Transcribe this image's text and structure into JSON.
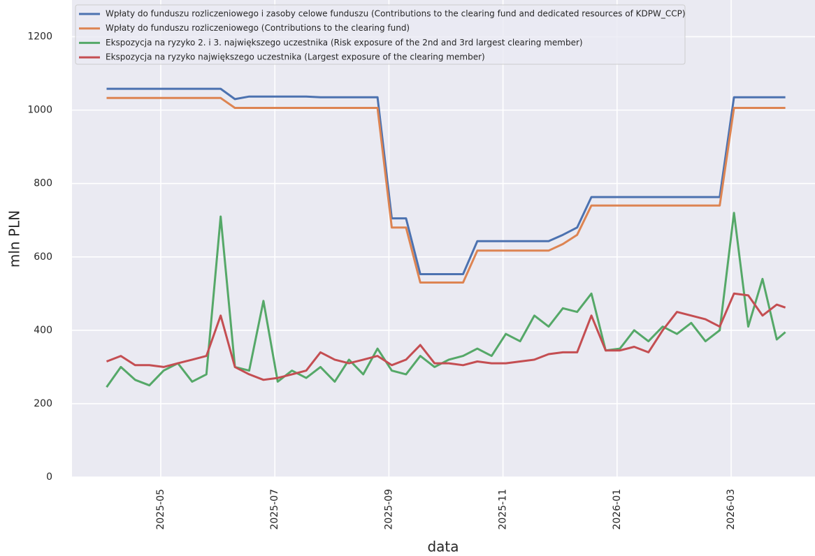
{
  "chart_data": {
    "type": "line",
    "xlabel": "data",
    "ylabel": "mln PLN",
    "xlim": [
      -0.556,
      12.47
    ],
    "ylim": [
      0,
      1300
    ],
    "xticks": [
      {
        "value": 1,
        "label": "2025-05"
      },
      {
        "value": 3,
        "label": "2025-07"
      },
      {
        "value": 5,
        "label": "2025-09"
      },
      {
        "value": 7,
        "label": "2025-11"
      },
      {
        "value": 9,
        "label": "2026-01"
      },
      {
        "value": 11,
        "label": "2026-03"
      }
    ],
    "yticks": [
      0,
      200,
      400,
      600,
      800,
      1000,
      1200
    ],
    "grid": true,
    "legend": "upper left",
    "x": [
      0.05,
      0.3,
      0.55,
      0.8,
      1.05,
      1.3,
      1.55,
      1.8,
      2.05,
      2.3,
      2.55,
      2.8,
      3.05,
      3.3,
      3.55,
      3.8,
      4.05,
      4.3,
      4.55,
      4.8,
      5.05,
      5.3,
      5.55,
      5.8,
      6.05,
      6.3,
      6.55,
      6.8,
      7.05,
      7.3,
      7.55,
      7.8,
      8.05,
      8.3,
      8.55,
      8.8,
      9.05,
      9.3,
      9.55,
      9.8,
      10.05,
      10.3,
      10.55,
      10.8,
      11.05,
      11.3,
      11.55,
      11.8,
      11.95
    ],
    "series": [
      {
        "name": "Wpłaty do funduszu rozliczeniowego i zasoby celowe funduszu (Contributions to the clearing fund and dedicated resources of KDPW_CCP)",
        "color": "#4c72b0",
        "values": [
          1058,
          1058,
          1058,
          1058,
          1058,
          1058,
          1058,
          1058,
          1058,
          1030,
          1037,
          1037,
          1037,
          1037,
          1037,
          1035,
          1035,
          1035,
          1035,
          1035,
          705,
          705,
          553,
          553,
          553,
          553,
          643,
          643,
          643,
          643,
          643,
          643,
          660,
          680,
          763,
          763,
          763,
          763,
          763,
          763,
          763,
          763,
          763,
          763,
          1035,
          1035,
          1035,
          1035,
          1035
        ]
      },
      {
        "name": "Wpłaty do funduszu rozliczeniowego (Contributions to the clearing fund)",
        "color": "#dd8452",
        "values": [
          1033,
          1033,
          1033,
          1033,
          1033,
          1033,
          1033,
          1033,
          1033,
          1006,
          1006,
          1006,
          1006,
          1006,
          1006,
          1006,
          1006,
          1006,
          1006,
          1006,
          680,
          680,
          530,
          530,
          530,
          530,
          617,
          617,
          617,
          617,
          617,
          617,
          635,
          660,
          740,
          740,
          740,
          740,
          740,
          740,
          740,
          740,
          740,
          740,
          1006,
          1006,
          1006,
          1006,
          1006
        ]
      },
      {
        "name": "Ekspozycja na ryzyko 2. i 3. największego uczestnika (Risk exposure of the 2nd and 3rd largest clearing member)",
        "color": "#55a868",
        "values": [
          245,
          300,
          265,
          250,
          290,
          310,
          260,
          280,
          710,
          300,
          290,
          480,
          260,
          290,
          270,
          300,
          260,
          320,
          280,
          350,
          290,
          280,
          330,
          300,
          320,
          330,
          350,
          330,
          390,
          370,
          440,
          410,
          460,
          450,
          500,
          345,
          350,
          400,
          370,
          410,
          390,
          420,
          370,
          400,
          720,
          410,
          540,
          375,
          395
        ]
      },
      {
        "name": "Ekspozycja na ryzyko największego uczestnika (Largest exposure of the clearing member)",
        "color": "#c44e52",
        "values": [
          315,
          330,
          305,
          305,
          300,
          310,
          320,
          330,
          440,
          300,
          280,
          265,
          270,
          280,
          290,
          340,
          320,
          310,
          320,
          330,
          305,
          320,
          360,
          310,
          310,
          305,
          315,
          310,
          310,
          315,
          320,
          335,
          340,
          340,
          440,
          345,
          345,
          355,
          340,
          400,
          450,
          440,
          430,
          410,
          500,
          495,
          440,
          470,
          462
        ]
      }
    ]
  }
}
